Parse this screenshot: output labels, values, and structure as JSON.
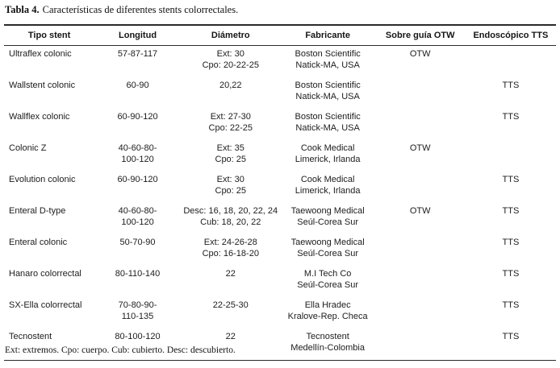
{
  "title": {
    "label": "Tabla 4.",
    "text": "Características de diferentes stents colorrectales."
  },
  "table": {
    "headers": [
      "Tipo stent",
      "Longitud",
      "Diámetro",
      "Fabricante",
      "Sobre guía OTW",
      "Endoscópico TTS"
    ],
    "rows": [
      {
        "tipo": "Ultraflex colonic",
        "longitud": [
          "57-87-117"
        ],
        "diametro": [
          "Ext: 30",
          "Cpo: 20-22-25"
        ],
        "fabricante": [
          "Boston Scientific",
          "Natick-MA, USA"
        ],
        "otw": "OTW",
        "tts": ""
      },
      {
        "tipo": "Wallstent colonic",
        "longitud": [
          "60-90"
        ],
        "diametro": [
          "20,22"
        ],
        "fabricante": [
          "Boston Scientific",
          "Natick-MA, USA"
        ],
        "otw": "",
        "tts": "TTS"
      },
      {
        "tipo": "Wallflex colonic",
        "longitud": [
          "60-90-120"
        ],
        "diametro": [
          "Ext: 27-30",
          "Cpo: 22-25"
        ],
        "fabricante": [
          "Boston Scientific",
          "Natick-MA, USA"
        ],
        "otw": "",
        "tts": "TTS"
      },
      {
        "tipo": "Colonic Z",
        "longitud": [
          "40-60-80-",
          "100-120"
        ],
        "diametro": [
          "Ext: 35",
          "Cpo: 25"
        ],
        "fabricante": [
          "Cook Medical",
          "Limerick, Irlanda"
        ],
        "otw": "OTW",
        "tts": ""
      },
      {
        "tipo": "Evolution colonic",
        "longitud": [
          "60-90-120"
        ],
        "diametro": [
          "Ext: 30",
          "Cpo: 25"
        ],
        "fabricante": [
          "Cook Medical",
          "Limerick, Irlanda"
        ],
        "otw": "",
        "tts": "TTS"
      },
      {
        "tipo": "Enteral D-type",
        "longitud": [
          "40-60-80-",
          "100-120"
        ],
        "diametro": [
          "Desc: 16, 18, 20, 22, 24",
          "Cub: 18, 20, 22"
        ],
        "fabricante": [
          "Taewoong Medical",
          "Seúl-Corea Sur"
        ],
        "otw": "OTW",
        "tts": "TTS"
      },
      {
        "tipo": "Enteral colonic",
        "longitud": [
          "50-70-90"
        ],
        "diametro": [
          "Ext: 24-26-28",
          "Cpo: 16-18-20"
        ],
        "fabricante": [
          "Taewoong Medical",
          "Seúl-Corea Sur"
        ],
        "otw": "",
        "tts": "TTS"
      },
      {
        "tipo": "Hanaro colorrectal",
        "longitud": [
          "80-110-140"
        ],
        "diametro": [
          "22"
        ],
        "fabricante": [
          "M.I Tech Co",
          "Seúl-Corea Sur"
        ],
        "otw": "",
        "tts": "TTS"
      },
      {
        "tipo": "SX-Ella colorrectal",
        "longitud": [
          "70-80-90-",
          "110-135"
        ],
        "diametro": [
          "22-25-30"
        ],
        "fabricante": [
          "Ella Hradec",
          "Kralove-Rep. Checa"
        ],
        "otw": "",
        "tts": "TTS"
      },
      {
        "tipo": "Tecnostent",
        "longitud": [
          "80-100-120"
        ],
        "diametro": [
          "22"
        ],
        "fabricante": [
          "Tecnostent",
          "Medellín-Colombia"
        ],
        "otw": "",
        "tts": "TTS"
      }
    ]
  },
  "footnote": "Ext: extremos. Cpo: cuerpo. Cub: cubierto. Desc: descubierto."
}
